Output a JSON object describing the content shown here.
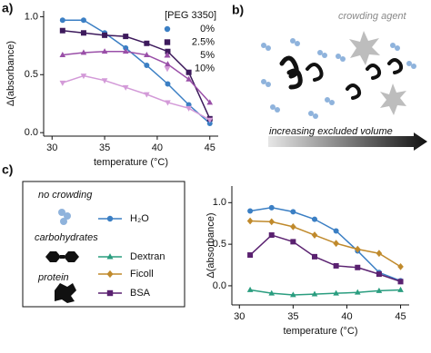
{
  "panels": {
    "a": "a)",
    "b": "b)",
    "c": "c)"
  },
  "diagram": {
    "agent_label": "crowding agent",
    "arrow_label": "increasing excluded volume"
  },
  "chart_data": [
    {
      "type": "line",
      "xlabel": "temperature (°C)",
      "ylabel": "Δ(absorbance)",
      "x": [
        31,
        33,
        35,
        37,
        39,
        41,
        43,
        45
      ],
      "xlim": [
        29.2,
        45.8
      ],
      "xticks": [
        30,
        35,
        40,
        45
      ],
      "ylim": [
        -0.03,
        1.05
      ],
      "yticks": [
        {
          "value": 0,
          "label": "0.0"
        },
        {
          "value": 0.5,
          "label": "0.5"
        },
        {
          "value": 1,
          "label": "1.0"
        }
      ],
      "legend": "upper right",
      "legend_title": "[PEG 3350]",
      "series": [
        {
          "name": "0%",
          "color": "#3b7fc4",
          "marker": "circle",
          "values": [
            0.97,
            0.97,
            0.86,
            0.73,
            0.58,
            0.42,
            0.24,
            0.08
          ]
        },
        {
          "name": "2.5%",
          "color": "#3d1a5c",
          "marker": "square",
          "values": [
            0.88,
            0.86,
            0.84,
            0.83,
            0.77,
            0.7,
            0.52,
            0.12
          ]
        },
        {
          "name": "5%",
          "color": "#9a4fa8",
          "marker": "triangle-up",
          "values": [
            0.67,
            0.69,
            0.7,
            0.7,
            0.67,
            0.59,
            0.46,
            0.26
          ]
        },
        {
          "name": "10%",
          "color": "#d39ad8",
          "marker": "triangle-down",
          "values": [
            0.43,
            0.49,
            0.45,
            0.39,
            0.33,
            0.26,
            0.21,
            0.11
          ]
        }
      ]
    },
    {
      "type": "line",
      "xlabel": "temperature (°C)",
      "ylabel": "Δ(absorbance)",
      "x": [
        31,
        33,
        35,
        37,
        39,
        41,
        43,
        45
      ],
      "xlim": [
        29.3,
        45.8
      ],
      "xticks": [
        30,
        35,
        40,
        45
      ],
      "ylim": [
        -0.23,
        1.2
      ],
      "yticks": [
        {
          "value": 0,
          "label": "0.0"
        },
        {
          "value": 0.5,
          "label": "0.5"
        },
        {
          "value": 1,
          "label": "1.0"
        }
      ],
      "legend": "left",
      "legend_groups": [
        "no crowding",
        "carbohydrates",
        "protein"
      ],
      "series": [
        {
          "name": "H₂O",
          "color": "#3b7fc4",
          "marker": "circle",
          "values": [
            0.9,
            0.94,
            0.89,
            0.8,
            0.66,
            0.42,
            0.16,
            0.06
          ]
        },
        {
          "name": "Dextran",
          "color": "#2a9d7f",
          "marker": "triangle-up",
          "values": [
            -0.05,
            -0.09,
            -0.11,
            -0.1,
            -0.09,
            -0.08,
            -0.06,
            -0.05
          ]
        },
        {
          "name": "Ficoll",
          "color": "#c08a2c",
          "marker": "diamond",
          "values": [
            0.78,
            0.77,
            0.71,
            0.61,
            0.51,
            0.44,
            0.39,
            0.23
          ]
        },
        {
          "name": "BSA",
          "color": "#5a2170",
          "marker": "square",
          "values": [
            0.37,
            0.61,
            0.53,
            0.35,
            0.24,
            0.22,
            0.14,
            0.05
          ]
        }
      ]
    }
  ]
}
